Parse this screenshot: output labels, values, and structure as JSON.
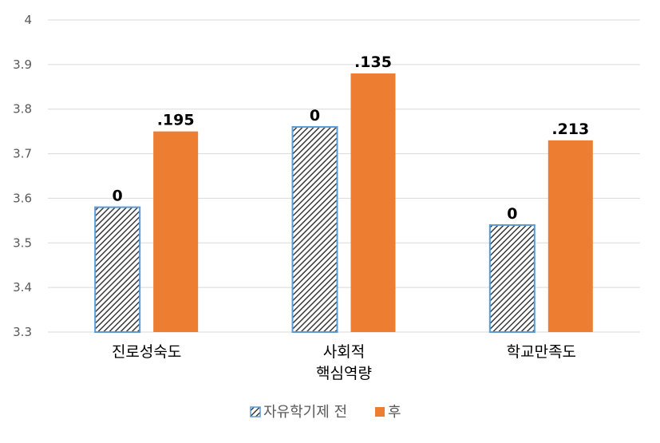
{
  "chart_data": {
    "type": "bar",
    "categories": [
      [
        "진로성숙도"
      ],
      [
        "사회적",
        "핵심역량"
      ],
      [
        "학교만족도"
      ]
    ],
    "series": [
      {
        "name": "자유학기제 전",
        "values": [
          3.58,
          3.76,
          3.54
        ],
        "data_labels": [
          "0",
          "0",
          "0"
        ],
        "pattern": "diagonal-hatch",
        "fill_color": "#3a3a3a",
        "border_color": "#5b9bd5"
      },
      {
        "name": "후",
        "values": [
          3.75,
          3.88,
          3.73
        ],
        "data_labels": [
          ".195",
          ".135",
          ".213"
        ],
        "fill_color": "#ed7d31"
      }
    ],
    "y_ticks": [
      "3.3",
      "3.4",
      "3.5",
      "3.6",
      "3.7",
      "3.8",
      "3.9",
      "4"
    ],
    "ylim": [
      3.3,
      4.0
    ],
    "grid": true,
    "legend_position": "bottom",
    "title": "",
    "xlabel": "",
    "ylabel": ""
  }
}
